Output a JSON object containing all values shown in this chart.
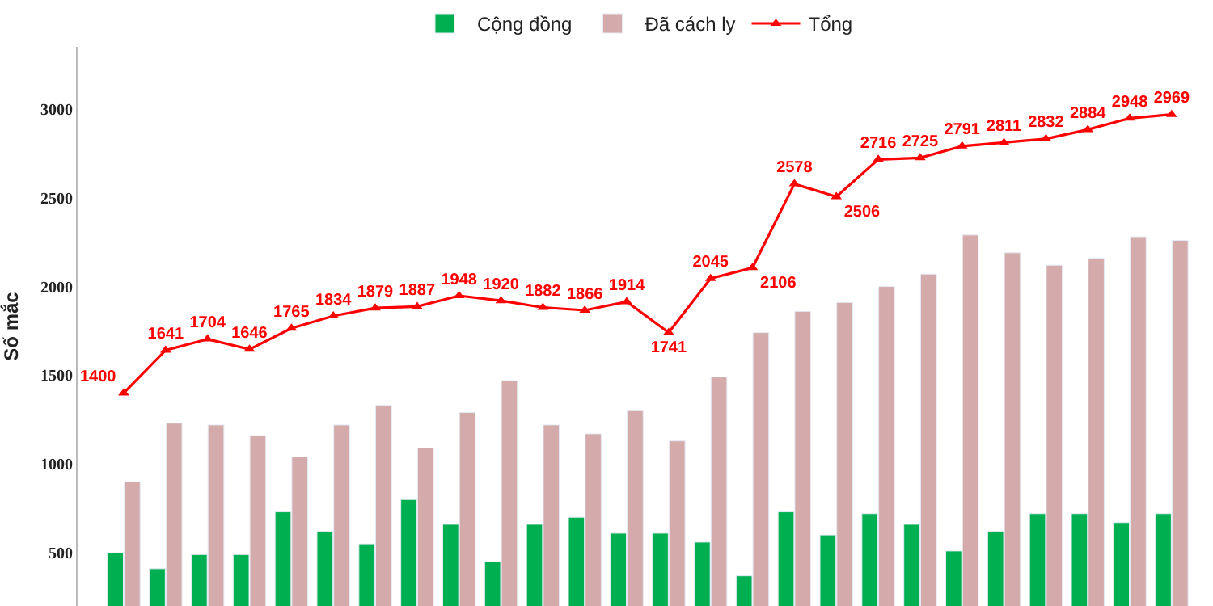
{
  "chart_data": {
    "type": "bar",
    "ylabel": "Số mắc",
    "categories": [
      null,
      null,
      null,
      null,
      null,
      null,
      null,
      null,
      null,
      null,
      null,
      null,
      null,
      null,
      null,
      null,
      null,
      null,
      null,
      null,
      null,
      null,
      null,
      null,
      null,
      null
    ],
    "ylim": [
      200,
      3350
    ],
    "yticks": [
      500,
      1000,
      1500,
      2000,
      2500,
      3000
    ],
    "grid": false,
    "legend": "top",
    "tick_labels": "y",
    "series": [
      {
        "name": "Cộng đồng",
        "color": "#00b050",
        "values": [
          500,
          410,
          490,
          490,
          730,
          620,
          550,
          800,
          660,
          450,
          660,
          700,
          610,
          610,
          560,
          370,
          730,
          600,
          720,
          660,
          510,
          620,
          720,
          720,
          670,
          720
        ]
      },
      {
        "name": "Đã cách ly",
        "color": "#d4aaaa",
        "values": [
          900,
          1230,
          1220,
          1160,
          1040,
          1220,
          1330,
          1090,
          1290,
          1470,
          1220,
          1170,
          1300,
          1130,
          1490,
          1740,
          1860,
          1910,
          2000,
          2070,
          2290,
          2190,
          2120,
          2160,
          2280,
          2260
        ]
      },
      {
        "name": "Tổng",
        "type": "line",
        "color": "#ff0000",
        "marker": "triangle",
        "line_style": "solid",
        "values": [
          1400,
          1641,
          1704,
          1646,
          1765,
          1834,
          1879,
          1887,
          1948,
          1920,
          1882,
          1866,
          1914,
          1741,
          2045,
          2106,
          2578,
          2506,
          2716,
          2725,
          2791,
          2811,
          2832,
          2884,
          2948,
          2969
        ],
        "value_labels": [
          "1400",
          "1641",
          "1704",
          "1646",
          "1765",
          "1834",
          "1879",
          "1887",
          "1948",
          "1920",
          "1882",
          "1866",
          "1914",
          "1741",
          "2045",
          "2106",
          "2578",
          "2506",
          "2716",
          "2725",
          "2791",
          "2811",
          "2832",
          "2884",
          "2948",
          "2969"
        ]
      }
    ]
  }
}
